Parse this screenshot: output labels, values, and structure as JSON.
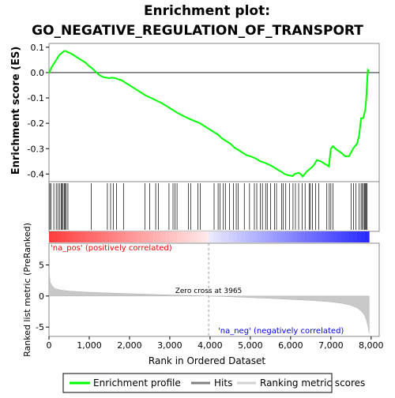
{
  "chart_data": {
    "type": "line",
    "title_lines": [
      "Enrichment plot:",
      "GO_NEGATIVE_REGULATION_OF_TRANSPORT"
    ],
    "top_panel": {
      "ylabel": "Enrichment score (ES)",
      "ylim": [
        -0.43,
        0.115
      ],
      "yticks": [
        0.1,
        0.0,
        -0.1,
        -0.2,
        -0.3,
        -0.4
      ],
      "ytick_labels": [
        "0.1",
        "0.0",
        "-0.1",
        "-0.2",
        "-0.3",
        "-0.4"
      ],
      "series": [
        {
          "color": "#00ff00",
          "x": [
            0,
            60,
            100,
            140,
            180,
            220,
            260,
            300,
            340,
            380,
            420,
            470,
            550,
            650,
            750,
            900,
            1000,
            1050,
            1150,
            1250,
            1350,
            1420,
            1500,
            1560,
            1650,
            1750,
            1800,
            1850,
            1950,
            2100,
            2300,
            2400,
            2600,
            2800,
            2950,
            3050,
            3200,
            3300,
            3450,
            3600,
            3750,
            3900,
            4000,
            4100,
            4200,
            4300,
            4400,
            4500,
            4600,
            4700,
            4800,
            4900,
            5000,
            5080,
            5150,
            5250,
            5350,
            5450,
            5550,
            5650,
            5700,
            5780,
            5850,
            5950,
            6050,
            6100,
            6200,
            6250,
            6300,
            6400,
            6480,
            6550,
            6600,
            6650,
            6750,
            6850,
            6950,
            7000,
            7050,
            7150,
            7250,
            7350,
            7450,
            7550,
            7650,
            7700,
            7750,
            7800,
            7850,
            7880,
            7900,
            7920,
            7950
          ],
          "y": [
            -0.003,
            0.02,
            0.03,
            0.04,
            0.05,
            0.06,
            0.07,
            0.075,
            0.08,
            0.085,
            0.085,
            0.08,
            0.075,
            0.065,
            0.055,
            0.04,
            0.025,
            0.02,
            0.005,
            -0.01,
            -0.018,
            -0.02,
            -0.022,
            -0.02,
            -0.022,
            -0.028,
            -0.03,
            -0.035,
            -0.045,
            -0.06,
            -0.08,
            -0.09,
            -0.105,
            -0.12,
            -0.135,
            -0.145,
            -0.16,
            -0.168,
            -0.18,
            -0.19,
            -0.2,
            -0.215,
            -0.225,
            -0.235,
            -0.245,
            -0.26,
            -0.27,
            -0.28,
            -0.295,
            -0.305,
            -0.315,
            -0.325,
            -0.33,
            -0.335,
            -0.34,
            -0.35,
            -0.355,
            -0.362,
            -0.37,
            -0.38,
            -0.385,
            -0.392,
            -0.4,
            -0.405,
            -0.408,
            -0.4,
            -0.395,
            -0.4,
            -0.41,
            -0.39,
            -0.38,
            -0.37,
            -0.36,
            -0.345,
            -0.35,
            -0.36,
            -0.37,
            -0.3,
            -0.29,
            -0.305,
            -0.315,
            -0.33,
            -0.33,
            -0.3,
            -0.28,
            -0.25,
            -0.18,
            -0.18,
            -0.15,
            -0.1,
            -0.04,
            0.01,
            0.005
          ]
        }
      ]
    },
    "hits": {
      "positions": [
        20,
        50,
        120,
        180,
        220,
        260,
        300,
        320,
        350,
        380,
        400,
        430,
        470,
        1050,
        1450,
        1530,
        1600,
        1680,
        1850,
        2380,
        2500,
        2650,
        2720,
        2980,
        3080,
        3130,
        3180,
        3460,
        3520,
        3700,
        3760,
        4100,
        4200,
        4250,
        4330,
        4380,
        4480,
        4580,
        4650,
        4700,
        4850,
        4980,
        5100,
        5160,
        5250,
        5300,
        5380,
        5420,
        5500,
        5600,
        5650,
        5780,
        5820,
        5880,
        5970,
        6060,
        6120,
        6200,
        6290,
        6360,
        6460,
        6490,
        6540,
        6620,
        6700,
        6900,
        6960,
        7000,
        7050,
        7500,
        7560,
        7620,
        7700,
        7750,
        7780,
        7810,
        7840,
        7860,
        7880,
        7900
      ]
    },
    "bottom_panel": {
      "ylabel": "Ranked list metric (PreRanked)",
      "ylim": [
        -6.5,
        8.5
      ],
      "yticks": [
        5,
        0,
        -5
      ],
      "ytick_labels": [
        "5",
        "0",
        "-5"
      ],
      "color": "#c8c8c8",
      "metric_curve": {
        "x": [
          0,
          30,
          80,
          150,
          300,
          500,
          1000,
          2000,
          3000,
          3965,
          4500,
          5500,
          6500,
          7000,
          7300,
          7500,
          7650,
          7750,
          7830,
          7880,
          7920,
          7950
        ],
        "y": [
          4.2,
          2.2,
          1.6,
          1.2,
          0.95,
          0.8,
          0.6,
          0.38,
          0.18,
          0.0,
          -0.12,
          -0.38,
          -0.7,
          -0.95,
          -1.2,
          -1.5,
          -1.9,
          -2.4,
          -3.0,
          -3.8,
          -4.8,
          -6.0
        ]
      },
      "pos_label": "'na_pos' (positively correlated)",
      "neg_label": "'na_neg' (negatively correlated)",
      "zero_cross_label": "Zero cross at 3965",
      "zero_cross": 3965
    },
    "xaxis": {
      "xlabel": "Rank in Ordered Dataset",
      "xlim": [
        0,
        8200
      ],
      "ticks": [
        0,
        1000,
        2000,
        3000,
        4000,
        5000,
        6000,
        7000,
        8000
      ],
      "tick_labels": [
        "0",
        "1,000",
        "2,000",
        "3,000",
        "4,000",
        "5,000",
        "6,000",
        "7,000",
        "8,000"
      ],
      "n": 7950
    },
    "legend": [
      {
        "label": "Enrichment profile",
        "color": "#00ff00"
      },
      {
        "label": "Hits",
        "color": "#808080"
      },
      {
        "label": "Ranking metric scores",
        "color": "#d3d3d3"
      }
    ],
    "colors": {
      "pos_label": "#ff0000",
      "neg_label": "#0000ff",
      "hits": "#000000"
    }
  }
}
